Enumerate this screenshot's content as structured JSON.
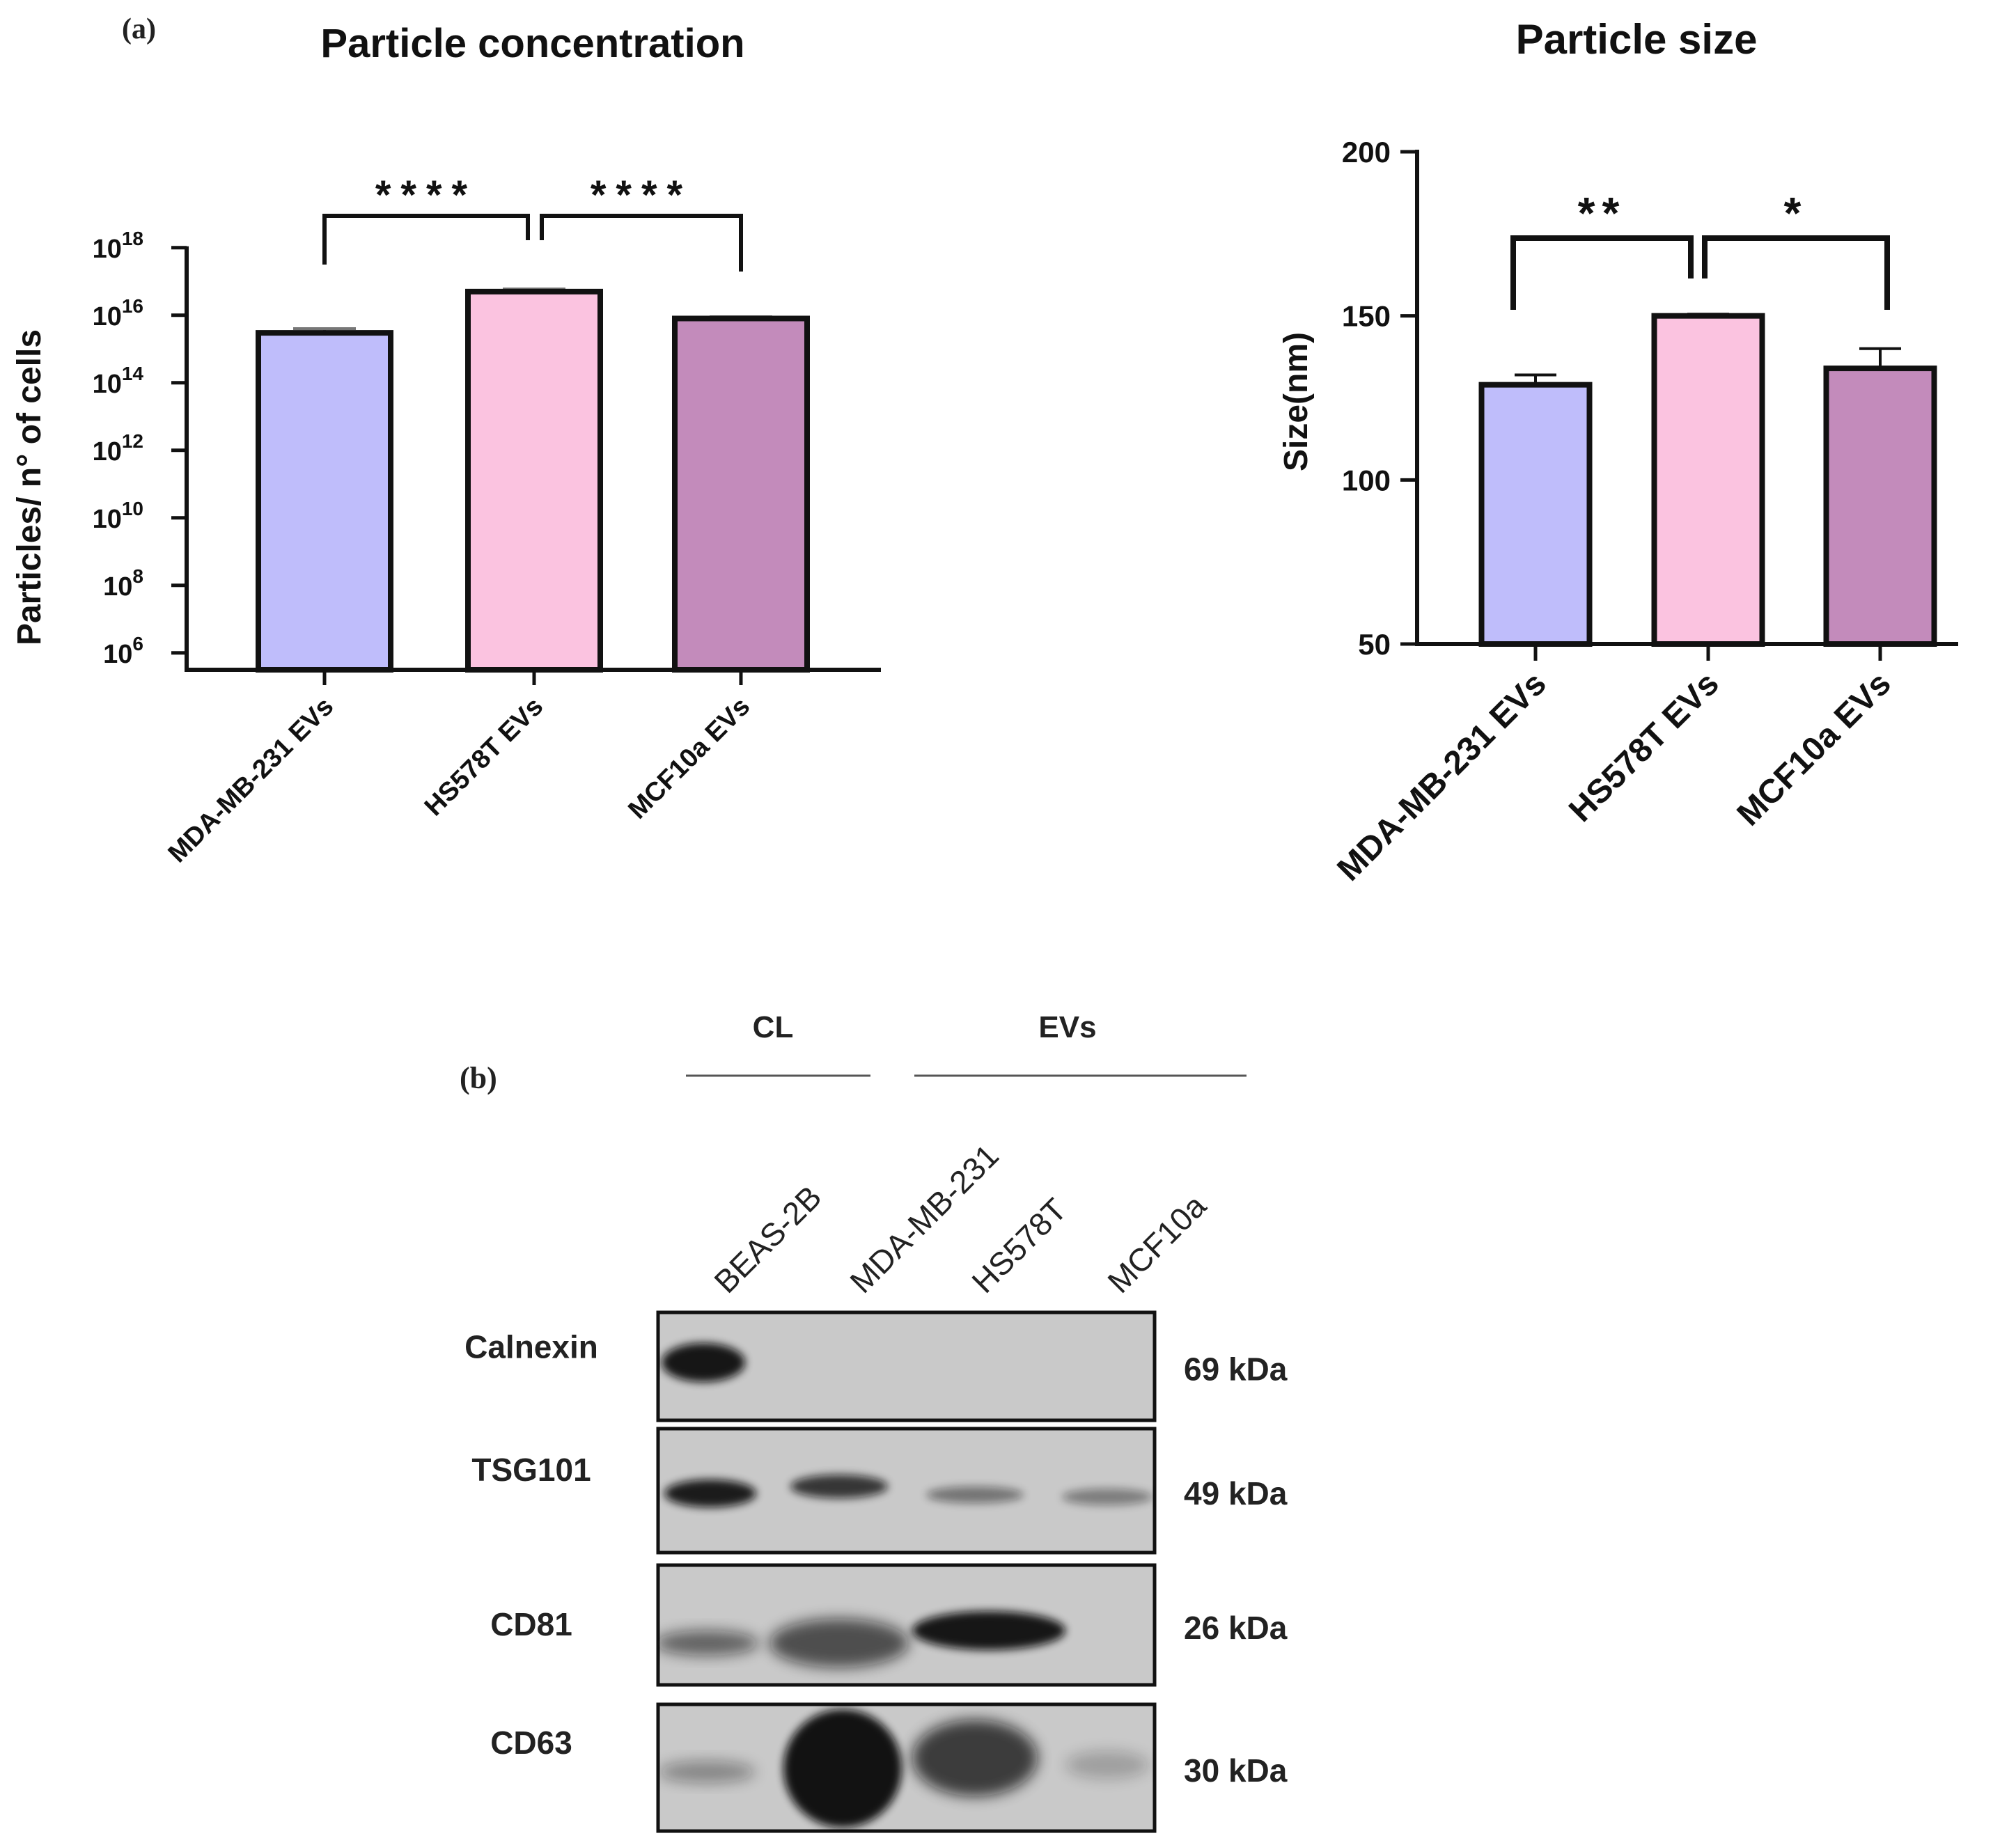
{
  "panel_a": {
    "label": "(a)",
    "concentration": {
      "title": "Particle concentration",
      "ylabel_text": "Particles/ n° of cells",
      "yscale": "log",
      "ylim_exp": [
        5,
        18
      ],
      "ytick_exponents": [
        "6",
        "8",
        "10",
        "12",
        "14",
        "16",
        "18"
      ],
      "ytick_base": "10"
    },
    "size": {
      "title": "Particle size",
      "ylabel_text": "Size(nm)",
      "ytick_labels": [
        "50",
        "100",
        "150",
        "200"
      ]
    }
  },
  "chart_data": [
    {
      "type": "bar",
      "title": "Particle concentration",
      "ylabel": "Particles/ n° of cells",
      "yscale": "log",
      "ylim": [
        100000.0,
        1e+18
      ],
      "categories": [
        "MDA-MB-231 EVs",
        "HS578T EVs",
        "MCF10a EVs"
      ],
      "values": [
        3000000000000000.0,
        5e+16,
        8000000000000000.0
      ],
      "errors": [
        1000000000000000.0,
        1e+16,
        1000000000000000.0
      ],
      "colors": [
        "#bfbdfb",
        "#fbc3e0",
        "#c38bbb"
      ],
      "significance": [
        {
          "from": 0,
          "to": 1,
          "label": "****"
        },
        {
          "from": 1,
          "to": 2,
          "label": "****"
        }
      ]
    },
    {
      "type": "bar",
      "title": "Particle size",
      "ylabel": "Size(nm)",
      "ylim": [
        50,
        200
      ],
      "yticks": [
        50,
        100,
        150,
        200
      ],
      "categories": [
        "MDA-MB-231 EVs",
        "HS578T EVs",
        "MCF10a EVs"
      ],
      "values": [
        129,
        150,
        134
      ],
      "errors": [
        3,
        0.5,
        6
      ],
      "colors": [
        "#bfbdfb",
        "#fbc3e0",
        "#c38bbb"
      ],
      "significance": [
        {
          "from": 0,
          "to": 1,
          "label": "**"
        },
        {
          "from": 1,
          "to": 2,
          "label": "*"
        }
      ]
    }
  ],
  "panel_b": {
    "label": "(b)",
    "group_cl": "CL",
    "group_evs": "EVs",
    "lanes": [
      "BEAS-2B",
      "MDA-MB-231",
      "HS578T",
      "MCF10a"
    ],
    "blots": [
      {
        "protein": "Calnexin",
        "kda": "69 kDa"
      },
      {
        "protein": "TSG101",
        "kda": "49 kDa"
      },
      {
        "protein": "CD81",
        "kda": "26 kDa"
      },
      {
        "protein": "CD63",
        "kda": "30 kDa"
      }
    ]
  }
}
